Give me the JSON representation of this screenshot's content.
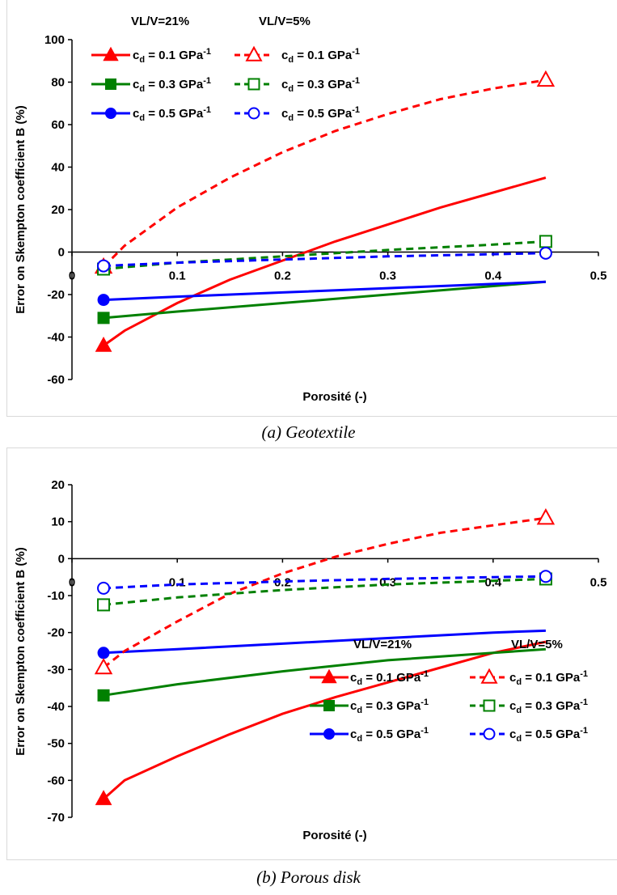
{
  "chart_data": [
    {
      "type": "line",
      "caption": "(a) Geotextile",
      "xlabel": "Porosité (-)",
      "ylabel": "Error on Skempton coefficient B (%)",
      "xlim": [
        0,
        0.5
      ],
      "ylim": [
        -60,
        100
      ],
      "xticks": [
        0,
        0.1,
        0.2,
        0.3,
        0.4,
        0.5
      ],
      "xtick_labels": [
        "0",
        "0.1",
        "0.2",
        "0.3",
        "0.4",
        "0.5"
      ],
      "yticks": [
        -60,
        -40,
        -20,
        0,
        20,
        40,
        60,
        80,
        100
      ],
      "ytick_labels": [
        "-60",
        "-40",
        "-20",
        "0",
        "20",
        "40",
        "60",
        "80",
        "100"
      ],
      "legend_placement": "top-left",
      "legend_headers": [
        "VL/V=21%",
        "VL/V=5%"
      ],
      "series": [
        {
          "name": "c_d = 0.1 GPa-1 (VL/V=21%)",
          "group": "VL/V=21%",
          "color": "#ff0000",
          "marker": "triangle",
          "filled": true,
          "dashed": false,
          "x": [
            0.03,
            0.05,
            0.1,
            0.15,
            0.2,
            0.25,
            0.3,
            0.35,
            0.4,
            0.45
          ],
          "y": [
            -44,
            -37,
            -24,
            -13,
            -4,
            5,
            13,
            21,
            28,
            35
          ]
        },
        {
          "name": "c_d = 0.3 GPa-1 (VL/V=21%)",
          "group": "VL/V=21%",
          "color": "#008000",
          "marker": "square",
          "filled": true,
          "dashed": false,
          "x": [
            0.03,
            0.1,
            0.2,
            0.3,
            0.4,
            0.45
          ],
          "y": [
            -31,
            -28,
            -24,
            -20,
            -16,
            -14
          ]
        },
        {
          "name": "c_d = 0.5 GPa-1 (VL/V=21%)",
          "group": "VL/V=21%",
          "color": "#0000ff",
          "marker": "circle",
          "filled": true,
          "dashed": false,
          "x": [
            0.03,
            0.1,
            0.2,
            0.3,
            0.4,
            0.45
          ],
          "y": [
            -22.5,
            -21,
            -19,
            -17,
            -15,
            -14
          ]
        },
        {
          "name": "c_d = 0.1 GPa-1 (VL/V=5%)",
          "group": "VL/V=5%",
          "color": "#ff0000",
          "marker": "triangle",
          "filled": false,
          "dashed": true,
          "x": [
            0.03,
            0.05,
            0.1,
            0.15,
            0.2,
            0.25,
            0.3,
            0.35,
            0.4,
            0.45
          ],
          "y": [
            -7,
            3,
            21,
            35,
            47,
            57,
            65,
            72,
            77,
            81
          ]
        },
        {
          "name": "c_d = 0.3 GPa-1 (VL/V=5%)",
          "group": "VL/V=5%",
          "color": "#008000",
          "marker": "square",
          "filled": false,
          "dashed": true,
          "x": [
            0.03,
            0.1,
            0.2,
            0.3,
            0.4,
            0.45
          ],
          "y": [
            -8,
            -5,
            -2,
            1,
            3.5,
            5
          ]
        },
        {
          "name": "c_d = 0.5 GPa-1 (VL/V=5%)",
          "group": "VL/V=5%",
          "color": "#0000ff",
          "marker": "circle",
          "filled": false,
          "dashed": true,
          "x": [
            0.03,
            0.1,
            0.2,
            0.3,
            0.4,
            0.45
          ],
          "y": [
            -6.5,
            -5,
            -3.5,
            -2,
            -1,
            -0.5
          ]
        }
      ]
    },
    {
      "type": "line",
      "caption": "(b) Porous disk",
      "xlabel": "Porosité (-)",
      "ylabel": "Error on Skempton coefficient B (%)",
      "xlim": [
        0,
        0.5
      ],
      "ylim": [
        -70,
        20
      ],
      "xticks": [
        0,
        0.1,
        0.2,
        0.3,
        0.4,
        0.5
      ],
      "xtick_labels": [
        "0",
        "0.1",
        "0.2",
        "0.3",
        "0.4",
        "0.5"
      ],
      "yticks": [
        -70,
        -60,
        -50,
        -40,
        -30,
        -20,
        -10,
        0,
        10,
        20
      ],
      "ytick_labels": [
        "-70",
        "-60",
        "-50",
        "-40",
        "-30",
        "-20",
        "-10",
        "0",
        "10",
        "20"
      ],
      "legend_placement": "bottom-right",
      "legend_headers": [
        "VL/V=21%",
        "VL/V=5%"
      ],
      "series": [
        {
          "name": "c_d = 0.1 GPa-1 (VL/V=21%)",
          "group": "VL/V=21%",
          "color": "#ff0000",
          "marker": "triangle",
          "filled": true,
          "dashed": false,
          "x": [
            0.03,
            0.05,
            0.1,
            0.15,
            0.2,
            0.25,
            0.3,
            0.35,
            0.4,
            0.45
          ],
          "y": [
            -65,
            -60,
            -53.5,
            -47.5,
            -42,
            -37.5,
            -33.5,
            -29.5,
            -25.5,
            -22.5
          ]
        },
        {
          "name": "c_d = 0.3 GPa-1 (VL/V=21%)",
          "group": "VL/V=21%",
          "color": "#008000",
          "marker": "square",
          "filled": true,
          "dashed": false,
          "x": [
            0.03,
            0.1,
            0.2,
            0.3,
            0.4,
            0.45
          ],
          "y": [
            -37,
            -34,
            -30.5,
            -27.5,
            -25.5,
            -24.5
          ]
        },
        {
          "name": "c_d = 0.5 GPa-1 (VL/V=21%)",
          "group": "VL/V=21%",
          "color": "#0000ff",
          "marker": "circle",
          "filled": true,
          "dashed": false,
          "x": [
            0.03,
            0.1,
            0.2,
            0.3,
            0.4,
            0.45
          ],
          "y": [
            -25.5,
            -24.5,
            -23,
            -21.5,
            -20,
            -19.5
          ]
        },
        {
          "name": "c_d = 0.1 GPa-1 (VL/V=5%)",
          "group": "VL/V=5%",
          "color": "#ff0000",
          "marker": "triangle",
          "filled": false,
          "dashed": true,
          "x": [
            0.03,
            0.05,
            0.1,
            0.15,
            0.2,
            0.25,
            0.3,
            0.35,
            0.4,
            0.45
          ],
          "y": [
            -29.5,
            -25,
            -17,
            -9.5,
            -4,
            0.5,
            4,
            7,
            9,
            11
          ]
        },
        {
          "name": "c_d = 0.3 GPa-1 (VL/V=5%)",
          "group": "VL/V=5%",
          "color": "#008000",
          "marker": "square",
          "filled": false,
          "dashed": true,
          "x": [
            0.03,
            0.1,
            0.2,
            0.3,
            0.4,
            0.45
          ],
          "y": [
            -12.5,
            -10.5,
            -8.5,
            -7,
            -6,
            -5.5
          ]
        },
        {
          "name": "c_d = 0.5 GPa-1 (VL/V=5%)",
          "group": "VL/V=5%",
          "color": "#0000ff",
          "marker": "circle",
          "filled": false,
          "dashed": true,
          "x": [
            0.03,
            0.1,
            0.2,
            0.3,
            0.4,
            0.45
          ],
          "y": [
            -8,
            -7,
            -6.2,
            -5.5,
            -5,
            -4.8
          ]
        }
      ],
      "legend_labels": [
        "c_d = 0.1 GPa-1",
        "c_d = 0.3 GPa-1",
        "c_d = 0.5 GPa-1"
      ]
    }
  ],
  "legend_label_parts": [
    {
      "c": "c",
      "sub": "d",
      "rest": " = 0.1 GPa",
      "sup": "-1"
    },
    {
      "c": "c",
      "sub": "d",
      "rest": " = 0.3 GPa",
      "sup": "-1"
    },
    {
      "c": "c",
      "sub": "d",
      "rest": " = 0.5 GPa",
      "sup": "-1"
    }
  ]
}
